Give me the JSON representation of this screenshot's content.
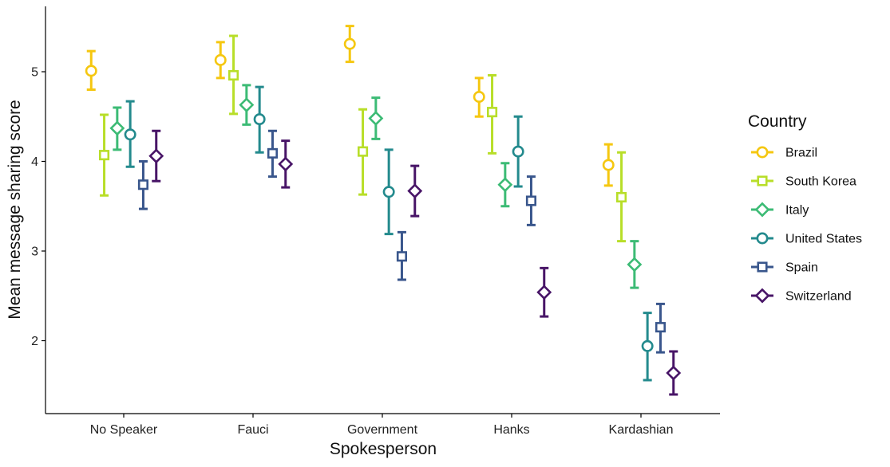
{
  "chart_data": {
    "type": "scatter",
    "title": "",
    "xlabel": "Spokesperson",
    "ylabel": "Mean message sharing score",
    "categories": [
      "No Speaker",
      "Fauci",
      "Government",
      "Hanks",
      "Kardashian"
    ],
    "yticks": [
      2,
      3,
      4,
      5
    ],
    "ylim": [
      1.3,
      5.65
    ],
    "grid": false,
    "legend": {
      "title": "Country",
      "position": "right"
    },
    "series": [
      {
        "name": "Brazil",
        "color": "#FDE725",
        "stroke": "#F5C710",
        "shape": "circle",
        "values": [
          5.01,
          5.13,
          5.31,
          4.72,
          3.96
        ],
        "lower": [
          4.8,
          4.93,
          5.11,
          4.5,
          3.73
        ],
        "upper": [
          5.23,
          5.33,
          5.51,
          4.93,
          4.19
        ]
      },
      {
        "name": "South Korea",
        "color": "#B8DE29",
        "stroke": "#B8DE29",
        "shape": "square",
        "values": [
          4.07,
          4.96,
          4.11,
          4.55,
          3.6
        ],
        "lower": [
          3.62,
          4.53,
          3.63,
          4.09,
          3.11
        ],
        "upper": [
          4.52,
          5.4,
          4.58,
          4.96,
          4.1
        ]
      },
      {
        "name": "Italy",
        "color": "#3CBB75",
        "stroke": "#3CBB75",
        "shape": "diamond",
        "values": [
          4.37,
          4.63,
          4.48,
          3.74,
          2.85
        ],
        "lower": [
          4.13,
          4.41,
          4.25,
          3.5,
          2.59
        ],
        "upper": [
          4.6,
          4.85,
          4.71,
          3.98,
          3.11
        ]
      },
      {
        "name": "United States",
        "color": "#238A8D",
        "stroke": "#238A8D",
        "shape": "circle",
        "values": [
          4.3,
          4.47,
          3.66,
          4.11,
          1.94
        ],
        "lower": [
          3.94,
          4.1,
          3.19,
          3.72,
          1.56
        ],
        "upper": [
          4.67,
          4.83,
          4.13,
          4.5,
          2.31
        ]
      },
      {
        "name": "Spain",
        "color": "#39568C",
        "stroke": "#39568C",
        "shape": "square",
        "values": [
          3.74,
          4.09,
          2.94,
          3.56,
          2.15
        ],
        "lower": [
          3.47,
          3.83,
          2.68,
          3.29,
          1.87
        ],
        "upper": [
          4.0,
          4.34,
          3.21,
          3.83,
          2.41
        ]
      },
      {
        "name": "Switzerland",
        "color": "#481567",
        "stroke": "#481567",
        "shape": "diamond",
        "values": [
          4.06,
          3.97,
          3.67,
          2.54,
          1.64
        ],
        "lower": [
          3.78,
          3.71,
          3.39,
          2.27,
          1.4
        ],
        "upper": [
          4.34,
          4.23,
          3.95,
          2.81,
          1.88
        ]
      }
    ]
  }
}
